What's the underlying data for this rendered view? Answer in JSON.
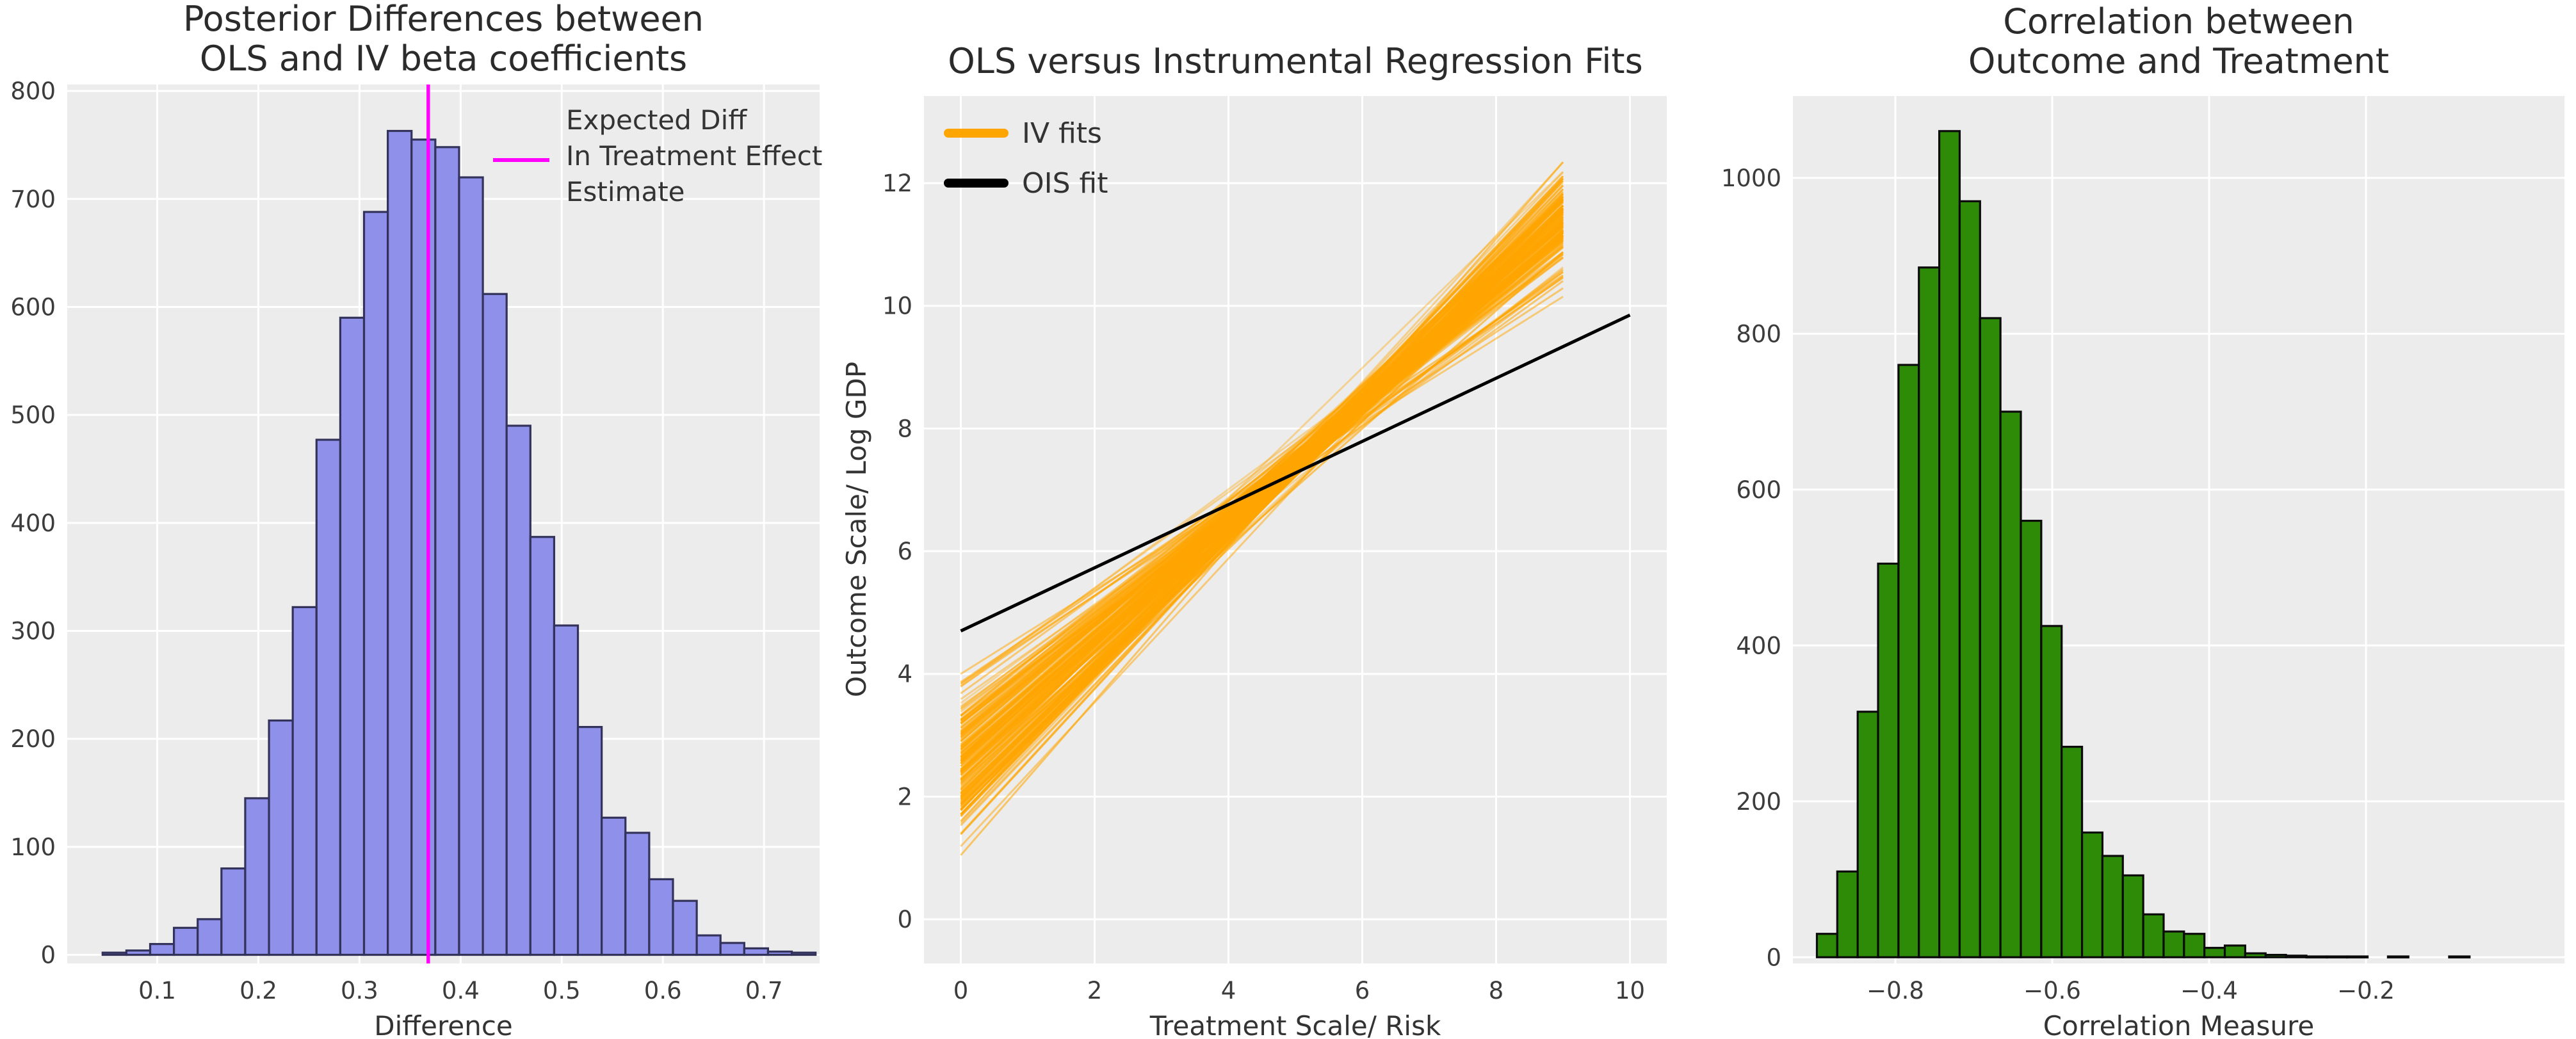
{
  "figure": {
    "background": "#ffffff",
    "panel_background": "#ececec",
    "grid_color": "#ffffff",
    "title_color": "#2b2b2b",
    "tick_color": "#3c3c3c"
  },
  "chart_data": [
    {
      "id": "posterior_diff_hist",
      "type": "bar",
      "title_lines": [
        "Posterior Differences between",
        "OLS and IV beta coefficients"
      ],
      "xlabel": "Difference",
      "ylabel": "",
      "xlim": [
        0.011,
        0.755
      ],
      "ylim": [
        -8,
        806
      ],
      "xticks": [
        0.1,
        0.2,
        0.3,
        0.4,
        0.5,
        0.6,
        0.7
      ],
      "xtick_labels": [
        "0.1",
        "0.2",
        "0.3",
        "0.4",
        "0.5",
        "0.6",
        "0.7"
      ],
      "yticks": [
        0,
        100,
        200,
        300,
        400,
        500,
        600,
        700,
        800
      ],
      "ytick_labels": [
        "0",
        "100",
        "200",
        "300",
        "400",
        "500",
        "600",
        "700",
        "800"
      ],
      "grid": true,
      "bar_color": "#8f90ea",
      "bar_edge_color": "#32325a",
      "bins": {
        "start": 0.046,
        "width": 0.0235,
        "counts": [
          2,
          4,
          10,
          25,
          33,
          80,
          145,
          217,
          322,
          477,
          590,
          688,
          763,
          755,
          748,
          720,
          612,
          490,
          387,
          305,
          211,
          127,
          113,
          70,
          50,
          18,
          11,
          6,
          3,
          2
        ]
      },
      "vline": {
        "x": 0.368,
        "color": "#ff00ff",
        "legend_lines": [
          "Expected Diff",
          " In Treatment Effect",
          " Estimate"
        ]
      }
    },
    {
      "id": "regression_fits",
      "type": "line",
      "title_lines": [
        "OLS versus Instrumental Regression Fits"
      ],
      "xlabel": "Treatment Scale/ Risk",
      "ylabel": "Outcome Scale/ Log GDP",
      "xlim": [
        -0.55,
        10.55
      ],
      "ylim": [
        -0.72,
        13.42
      ],
      "xticks": [
        0,
        2,
        4,
        6,
        8,
        10
      ],
      "xtick_labels": [
        "0",
        "2",
        "4",
        "6",
        "8",
        "10"
      ],
      "yticks": [
        0,
        2,
        4,
        6,
        8,
        10,
        12
      ],
      "ytick_labels": [
        "0",
        "2",
        "4",
        "6",
        "8",
        "10",
        "12"
      ],
      "grid": true,
      "series": [
        {
          "name": "IV fits",
          "kind": "ensemble",
          "color": "#ffa500",
          "count": 170,
          "x_start": 0,
          "x_end": 9,
          "intercept_mean": 2.55,
          "intercept_sd": 0.62,
          "intercept_range": [
            0.35,
            4.0
          ],
          "end_mean": 11.35,
          "end_slope_vs_intercept": -0.58,
          "end_noise_sd": 0.22,
          "end_range": [
            10.15,
            12.55
          ]
        },
        {
          "name": "OIS fit",
          "kind": "line",
          "color": "#000000",
          "x": [
            0,
            10
          ],
          "y": [
            4.7,
            9.85
          ]
        }
      ],
      "legend": [
        {
          "label": "IV fits",
          "color": "#ffa500"
        },
        {
          "label": "OIS fit",
          "color": "#000000"
        }
      ]
    },
    {
      "id": "correlation_hist",
      "type": "bar",
      "title_lines": [
        "Correlation between",
        "Outcome and Treatment"
      ],
      "xlabel": "Correlation Measure",
      "ylabel": "",
      "xlim": [
        -0.9306,
        0.053
      ],
      "ylim": [
        -8,
        1105
      ],
      "xticks": [
        -0.8,
        -0.6,
        -0.4,
        -0.2
      ],
      "xtick_labels": [
        "−0.8",
        "−0.6",
        "−0.4",
        "−0.2"
      ],
      "yticks": [
        0,
        200,
        400,
        600,
        800,
        1000
      ],
      "ytick_labels": [
        "0",
        "200",
        "400",
        "600",
        "800",
        "1000"
      ],
      "grid": true,
      "bar_color": "#2e8b08",
      "bar_edge_color": "#0b0b0b",
      "bins": {
        "start": -0.9,
        "width": 0.026,
        "counts": [
          30,
          110,
          315,
          505,
          760,
          885,
          1060,
          970,
          820,
          700,
          560,
          425,
          270,
          160,
          130,
          105,
          55,
          33,
          30,
          12,
          15,
          5,
          3,
          2,
          1,
          1,
          1,
          0,
          1,
          0,
          0,
          1
        ]
      }
    }
  ]
}
